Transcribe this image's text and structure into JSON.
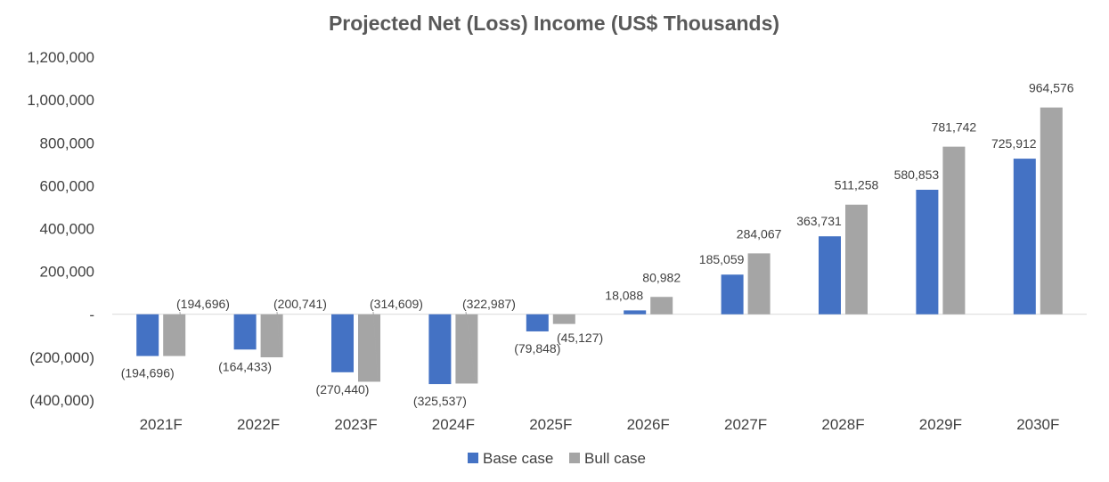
{
  "chart_data": {
    "type": "bar",
    "title": "Projected Net (Loss) Income (US$ Thousands)",
    "xlabel": "",
    "ylabel": "",
    "ylim": [
      -400000,
      1200000
    ],
    "yticks": [
      1200000,
      1000000,
      800000,
      600000,
      400000,
      200000,
      0,
      -200000,
      -400000
    ],
    "ytick_labels": [
      "1,200,000",
      "1,000,000",
      "800,000",
      "600,000",
      "400,000",
      "200,000",
      "-",
      "(200,000)",
      "(400,000)"
    ],
    "categories": [
      "2021F",
      "2022F",
      "2023F",
      "2024F",
      "2025F",
      "2026F",
      "2027F",
      "2028F",
      "2029F",
      "2030F"
    ],
    "legend_position": "bottom",
    "grid": false,
    "series": [
      {
        "name": "Base case",
        "color": "#4472C4",
        "values": [
          -194696,
          -164433,
          -270440,
          -325537,
          -79848,
          18088,
          185059,
          363731,
          580853,
          725912
        ],
        "labels": [
          "(194,696)",
          "(164,433)",
          "(270,440)",
          "(325,537)",
          "(79,848)",
          "18,088",
          "185,059",
          "363,731",
          "580,853",
          "725,912"
        ]
      },
      {
        "name": "Bull case",
        "color": "#A5A5A5",
        "values": [
          -194696,
          -200741,
          -314609,
          -322987,
          -45127,
          80982,
          284067,
          511258,
          781742,
          964576
        ],
        "labels": [
          "(194,696)",
          "(200,741)",
          "(314,609)",
          "(322,987)",
          "(45,127)",
          "80,982",
          "284,067",
          "511,258",
          "781,742",
          "964,576"
        ]
      }
    ]
  }
}
